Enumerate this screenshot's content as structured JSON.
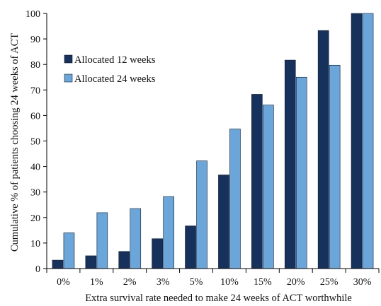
{
  "chart_data": {
    "type": "bar",
    "categories": [
      "0%",
      "1%",
      "2%",
      "3%",
      "5%",
      "10%",
      "15%",
      "20%",
      "25%",
      "30%"
    ],
    "series": [
      {
        "name": "Allocated 12 weeks",
        "color": "#16325c",
        "values": [
          3.3,
          5.0,
          6.7,
          11.7,
          16.7,
          36.7,
          68.3,
          81.7,
          93.3,
          100
        ]
      },
      {
        "name": "Allocated 24 weeks",
        "color": "#6aa6da",
        "values": [
          14.0,
          21.9,
          23.5,
          28.2,
          42.2,
          54.7,
          64.1,
          75.0,
          79.7,
          100
        ]
      }
    ],
    "title": "",
    "xlabel": "Extra survival rate needed to make 24 weeks of ACT worthwhile",
    "ylabel": "Cumulative % of patients choosing 24 weeks of ACT",
    "ylim": [
      0,
      100
    ],
    "yticks": [
      0,
      10,
      20,
      30,
      40,
      50,
      60,
      70,
      80,
      90,
      100
    ],
    "grid": false,
    "legend_position": "upper-left"
  }
}
